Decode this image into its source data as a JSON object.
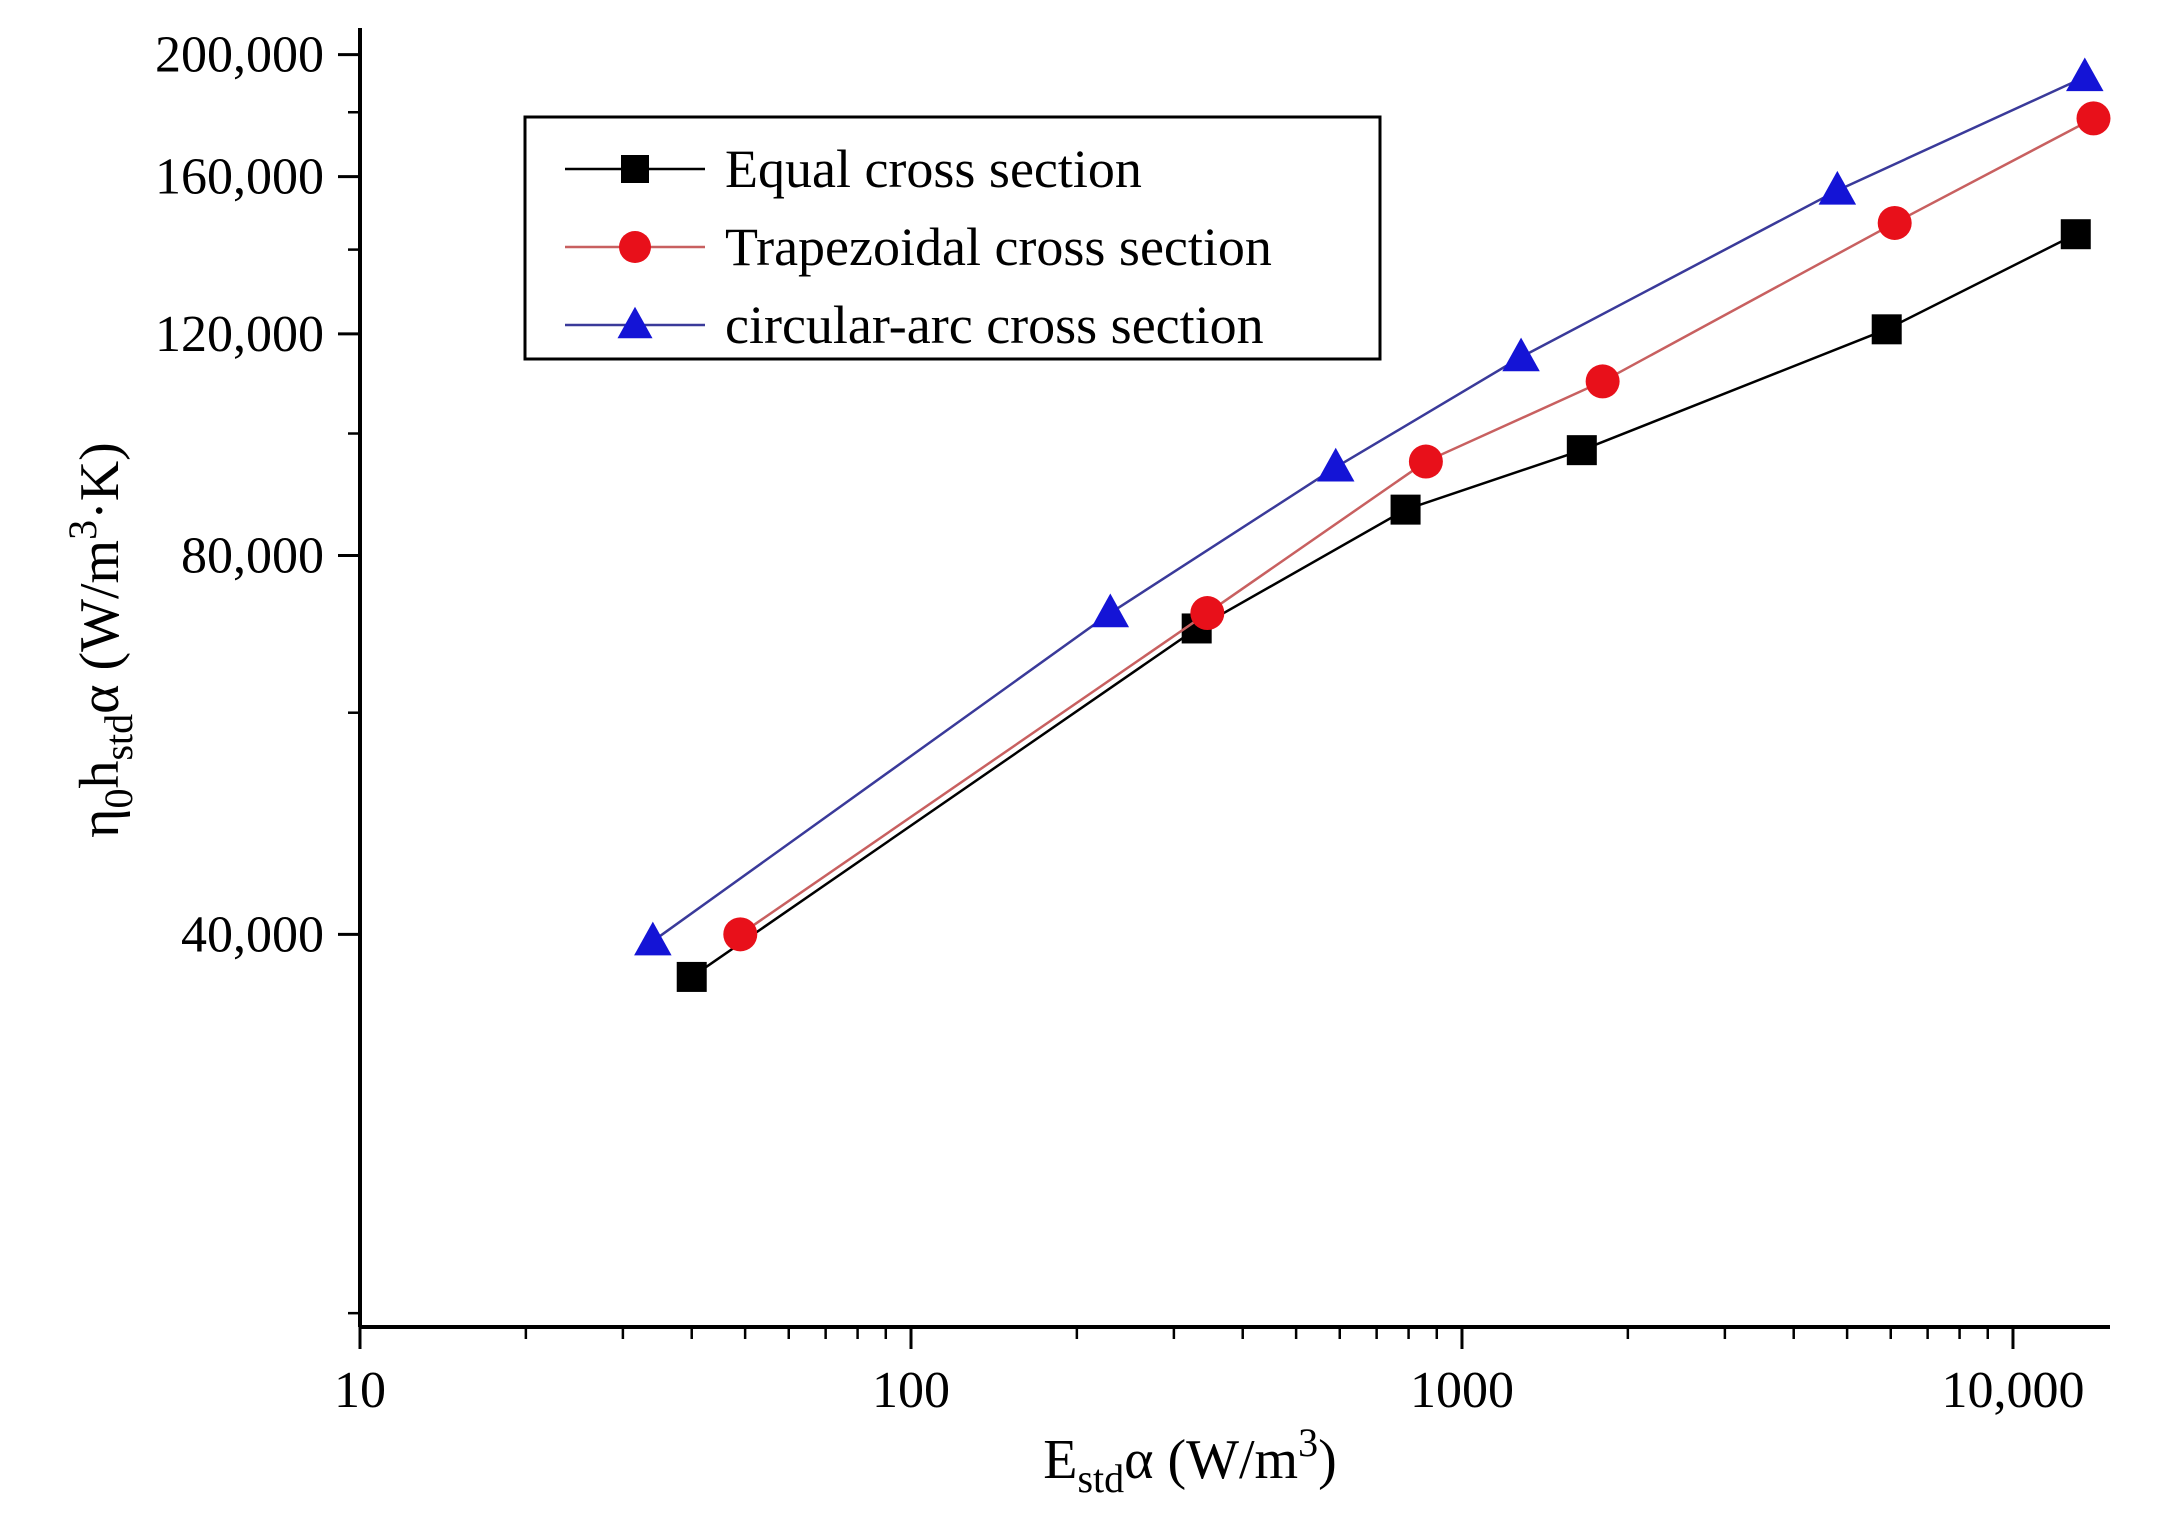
{
  "chart_data": {
    "type": "line",
    "xscale": "log",
    "yscale": "log",
    "xlim": [
      10,
      15000
    ],
    "ylim": [
      19500,
      210000
    ],
    "x_ticks": [
      {
        "value": 10,
        "label": "10"
      },
      {
        "value": 100,
        "label": "100"
      },
      {
        "value": 1000,
        "label": "1000"
      },
      {
        "value": 10000,
        "label": "10,000"
      }
    ],
    "y_ticks": [
      {
        "value": 40000,
        "label": "40,000"
      },
      {
        "value": 80000,
        "label": "80,000"
      },
      {
        "value": 120000,
        "label": "120,000"
      },
      {
        "value": 160000,
        "label": "160,000"
      },
      {
        "value": 200000,
        "label": "200,000"
      }
    ],
    "x_minor_ticks": [
      20,
      30,
      40,
      50,
      60,
      70,
      80,
      90,
      200,
      300,
      400,
      500,
      600,
      700,
      800,
      900,
      2000,
      3000,
      4000,
      5000,
      6000,
      7000,
      8000,
      9000
    ],
    "y_minor_ticks": [
      20000,
      60000,
      100000,
      140000,
      180000
    ],
    "xlabel": {
      "main": "E",
      "sub": "std",
      "rest": "α (W/m",
      "sup": "3",
      "end": ")"
    },
    "ylabel": {
      "p1": "η",
      "s1": "0",
      "p2": "h",
      "s2": "std",
      "p3": "α (W/m",
      "sup": "3",
      "p4": "·K)"
    },
    "legend_position": "upper-left",
    "series": [
      {
        "name": "Equal cross section",
        "color": "#000000",
        "line_color": "#000000",
        "marker": "square",
        "x": [
          40,
          330,
          790,
          1650,
          5900,
          13000
        ],
        "y": [
          37000,
          70000,
          87000,
          97000,
          121000,
          144000
        ]
      },
      {
        "name": "Trapezoidal cross section",
        "color": "#e8101a",
        "line_color": "#c86060",
        "marker": "circle",
        "x": [
          49,
          345,
          860,
          1800,
          6100,
          14000
        ],
        "y": [
          40000,
          72000,
          95000,
          110000,
          147000,
          178000
        ]
      },
      {
        "name": "circular-arc cross section",
        "color": "#1414d6",
        "line_color": "#3a3a9a",
        "marker": "triangle",
        "x": [
          34,
          230,
          590,
          1280,
          4800,
          13500
        ],
        "y": [
          39500,
          72000,
          94000,
          115000,
          156000,
          192000
        ]
      }
    ]
  }
}
